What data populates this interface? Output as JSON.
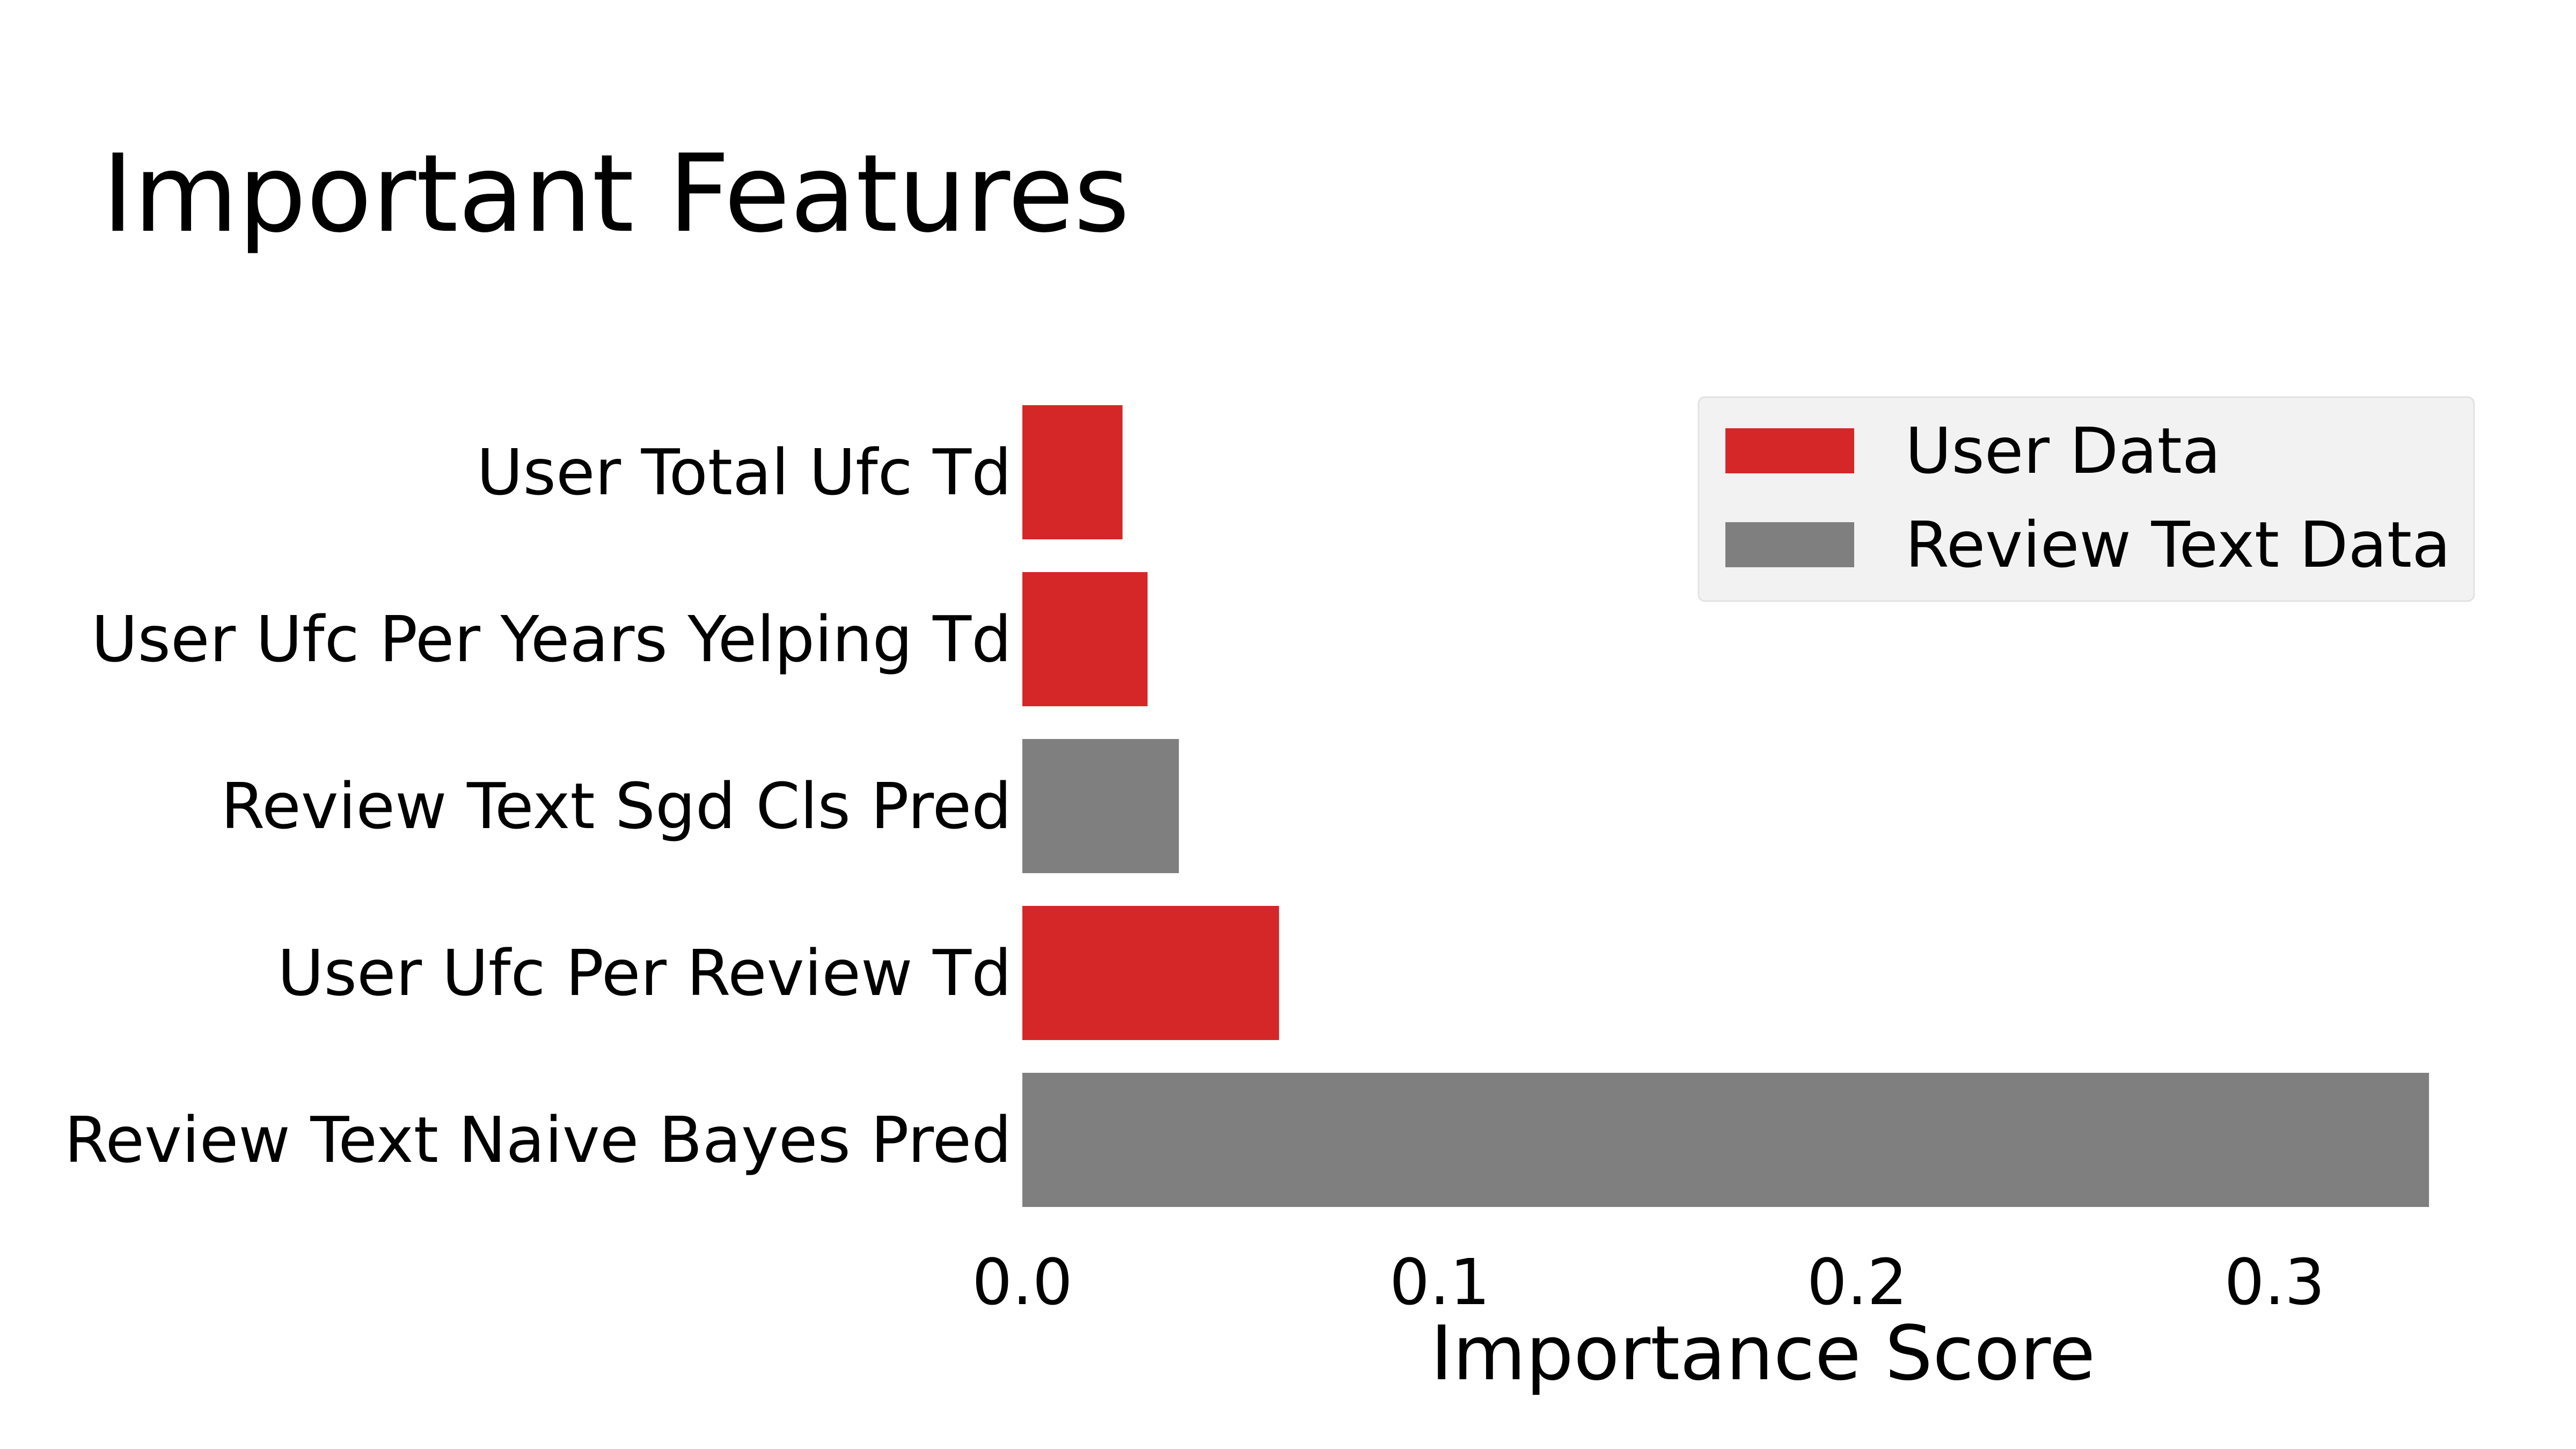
{
  "chart_data": {
    "type": "bar",
    "orientation": "horizontal",
    "title": "Important Features",
    "xlabel": "Importance Score",
    "ylabel": "",
    "xlim": [
      0,
      0.35
    ],
    "xticks": [
      0.0,
      0.1,
      0.2,
      0.3
    ],
    "xtick_labels": [
      "0.0",
      "0.1",
      "0.2",
      "0.3"
    ],
    "grid": false,
    "legend_position": "top-right",
    "legend": [
      {
        "label": "User Data",
        "color": "#d62728"
      },
      {
        "label": "Review Text Data",
        "color": "#7f7f7f"
      }
    ],
    "bars": [
      {
        "label": "User Total Ufc Td",
        "value": 0.024,
        "group": "User Data"
      },
      {
        "label": "User Ufc Per Years Yelping Td",
        "value": 0.03,
        "group": "User Data"
      },
      {
        "label": "Review Text Sgd Cls Pred",
        "value": 0.0375,
        "group": "Review Text Data"
      },
      {
        "label": "User Ufc Per Review Td",
        "value": 0.0615,
        "group": "User Data"
      },
      {
        "label": "Review Text Naive Bayes Pred",
        "value": 0.337,
        "group": "Review Text Data"
      }
    ]
  }
}
